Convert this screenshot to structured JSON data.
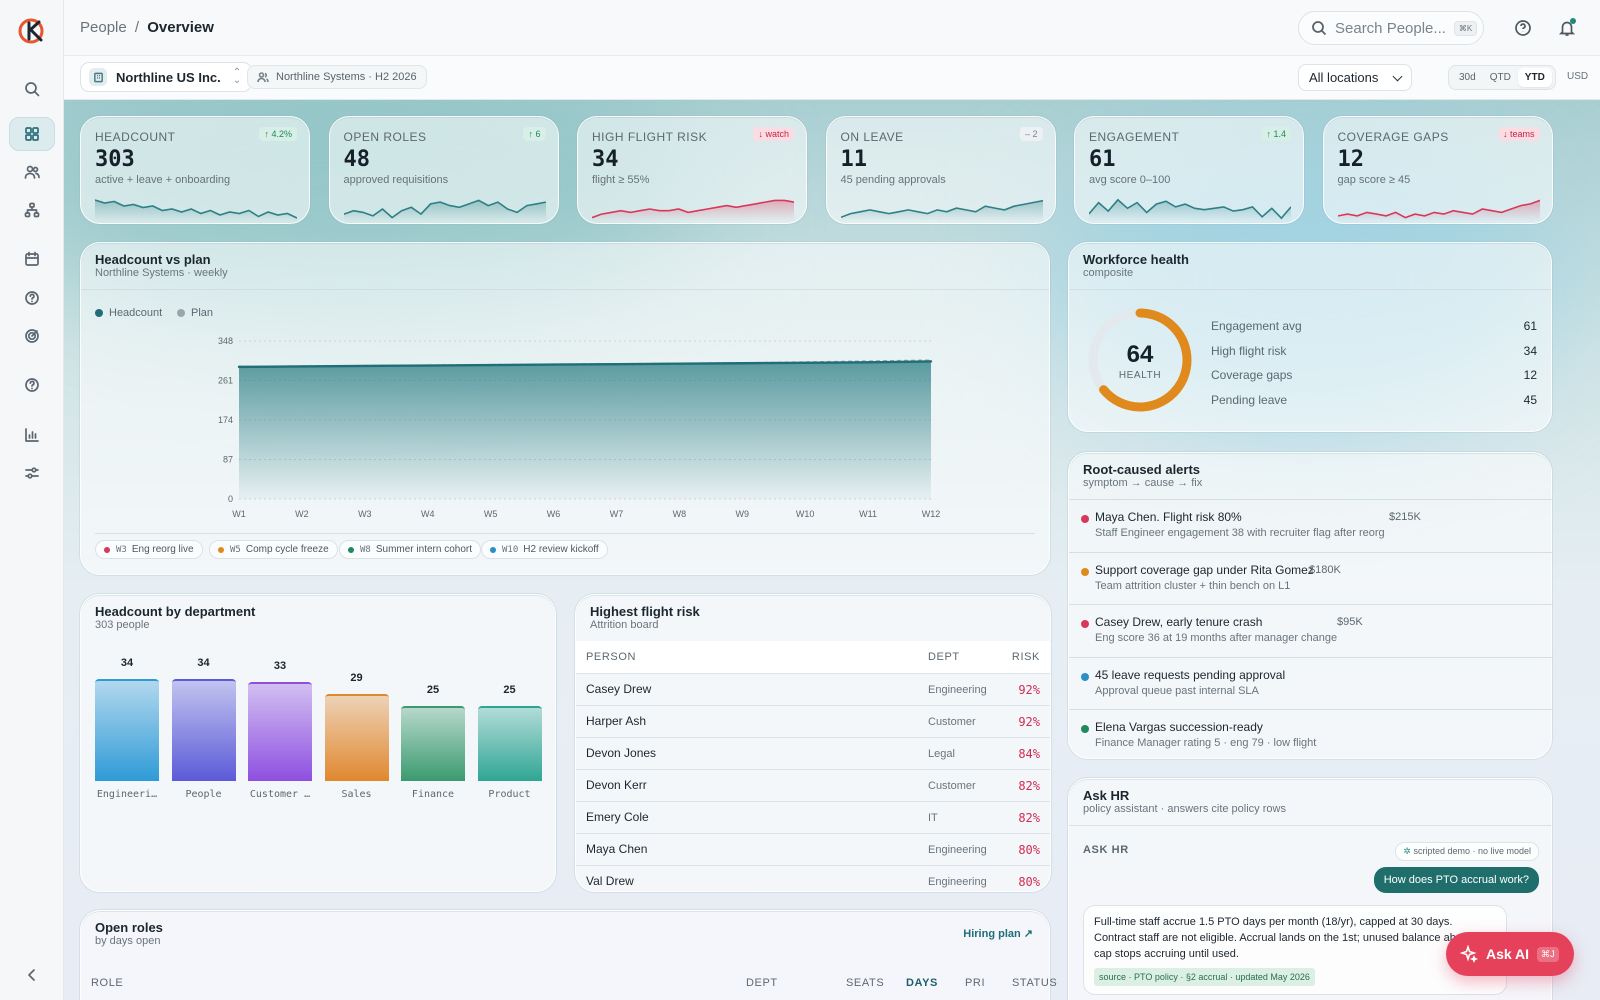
{
  "header": {
    "breadcrumb_parent": "People",
    "breadcrumb_sep": "/",
    "breadcrumb_current": "Overview",
    "search_placeholder": "Search People...",
    "search_shortcut": "⌘K"
  },
  "subbar": {
    "org": "Northline US Inc.",
    "scope": "Northline Systems · H2 2026",
    "location": "All locations",
    "ranges": [
      "30d",
      "QTD",
      "YTD"
    ],
    "selected_range": "YTD",
    "currency": "USD"
  },
  "kpis": [
    {
      "label": "HEADCOUNT",
      "value": "303",
      "sub": "active + leave + onboarding",
      "badge": "↑ 4.2%",
      "badge_kind": "up",
      "spark": [
        30,
        28,
        29,
        26,
        27,
        25,
        26,
        23,
        24,
        22,
        24,
        21,
        23,
        20,
        22,
        21,
        23,
        19,
        22,
        20,
        21,
        18
      ],
      "spark_color": "#2f7f86"
    },
    {
      "label": "OPEN ROLES",
      "value": "48",
      "sub": "approved requisitions",
      "badge": "↑ 6",
      "badge_kind": "up",
      "spark": [
        20,
        22,
        21,
        19,
        23,
        18,
        22,
        24,
        20,
        26,
        27,
        25,
        24,
        26,
        28,
        25,
        27,
        23,
        21,
        25,
        26,
        27
      ],
      "spark_color": "#2f7f86"
    },
    {
      "label": "HIGH FLIGHT RISK",
      "value": "34",
      "sub": "flight ≥ 55%",
      "badge": "↓ watch",
      "badge_kind": "down",
      "spark": [
        18,
        20,
        21,
        22,
        21,
        22,
        23,
        22,
        22,
        23,
        21,
        22,
        23,
        24,
        25,
        24,
        25,
        26,
        27,
        28,
        28,
        27
      ],
      "spark_color": "#d8385a"
    },
    {
      "label": "ON LEAVE",
      "value": "11",
      "sub": "45 pending approvals",
      "badge": "– 2",
      "badge_kind": "neutral",
      "spark": [
        18,
        20,
        21,
        22,
        21,
        20,
        21,
        22,
        21,
        20,
        22,
        21,
        23,
        22,
        21,
        24,
        23,
        22,
        24,
        25,
        26,
        27
      ],
      "spark_color": "#2f7f86"
    },
    {
      "label": "ENGAGEMENT",
      "value": "61",
      "sub": "avg score 0–100",
      "badge": "↑ 1.4",
      "badge_kind": "up",
      "spark": [
        22,
        30,
        24,
        32,
        26,
        30,
        23,
        29,
        31,
        27,
        29,
        26,
        25,
        26,
        27,
        24,
        25,
        27,
        20,
        26,
        19,
        27
      ],
      "spark_color": "#2f7f86"
    },
    {
      "label": "COVERAGE GAPS",
      "value": "12",
      "sub": "gap score ≥ 45",
      "badge": "↓ teams",
      "badge_kind": "down",
      "spark": [
        20,
        21,
        20,
        22,
        21,
        20,
        22,
        19,
        21,
        20,
        22,
        21,
        23,
        22,
        21,
        24,
        23,
        22,
        24,
        26,
        27,
        29
      ],
      "spark_color": "#d8385a"
    }
  ],
  "headcount_chart": {
    "title": "Headcount vs plan",
    "subtitle": "Northline Systems · weekly",
    "legend": [
      "Headcount",
      "Plan"
    ],
    "event_pills": [
      {
        "week": "W3",
        "label": "Eng reorg live",
        "color": "#d8385a"
      },
      {
        "week": "W5",
        "label": "Comp cycle freeze",
        "color": "#e08a1e"
      },
      {
        "week": "W8",
        "label": "Summer intern cohort",
        "color": "#1f8a5e"
      },
      {
        "week": "W10",
        "label": "H2 review kickoff",
        "color": "#2a8fc7"
      }
    ]
  },
  "chart_data": [
    {
      "type": "area",
      "title": "Headcount vs plan",
      "x": [
        "W1",
        "W2",
        "W3",
        "W4",
        "W5",
        "W6",
        "W7",
        "W8",
        "W9",
        "W10",
        "W11",
        "W12"
      ],
      "series": [
        {
          "name": "Headcount",
          "values": [
            291,
            292,
            293,
            294,
            295,
            296,
            297,
            298,
            299,
            300,
            301,
            303
          ]
        },
        {
          "name": "Plan",
          "values": [
            292,
            293,
            294,
            295,
            296,
            297,
            298,
            299,
            300,
            302,
            304,
            306
          ]
        }
      ],
      "y_ticks": [
        0,
        87,
        174,
        261,
        348
      ],
      "ylim": [
        0,
        348
      ],
      "legend_position": "top-left"
    },
    {
      "type": "bar",
      "title": "Headcount by department",
      "categories": [
        "Engineeri…",
        "People",
        "Customer …",
        "Sales",
        "Finance",
        "Product"
      ],
      "values": [
        34,
        34,
        33,
        29,
        25,
        25
      ],
      "colors": [
        "#2e9ad6",
        "#5b5ad8",
        "#8e4fe0",
        "#e0872e",
        "#3a9a6e",
        "#2fa594"
      ]
    }
  ],
  "health": {
    "title": "Workforce health",
    "subtitle": "composite",
    "score": "64",
    "score_label": "HEALTH",
    "score_fraction": 0.64,
    "rows": [
      {
        "label": "Engagement avg",
        "value": "61"
      },
      {
        "label": "High flight risk",
        "value": "34"
      },
      {
        "label": "Coverage gaps",
        "value": "12"
      },
      {
        "label": "Pending leave",
        "value": "45"
      }
    ]
  },
  "alerts": {
    "title": "Root-caused alerts",
    "subtitle": "symptom → cause → fix",
    "items": [
      {
        "title": "Maya Chen. Flight risk 80%",
        "detail": "Staff Engineer engagement 38 with recruiter flag after reorg",
        "amount": "$215K",
        "color": "#d8385a"
      },
      {
        "title": "Support coverage gap under Rita Gomez",
        "detail": "Team attrition cluster + thin bench on L1",
        "amount": "$180K",
        "color": "#e08a1e"
      },
      {
        "title": "Casey Drew, early tenure crash",
        "detail": "Eng score 36 at 19 months after manager change",
        "amount": "$95K",
        "color": "#d8385a"
      },
      {
        "title": "45 leave requests pending approval",
        "detail": "Approval queue past internal SLA",
        "amount": "",
        "color": "#2a8fc7"
      },
      {
        "title": "Elena Vargas succession-ready",
        "detail": "Finance Manager rating 5 · eng 79 · low flight",
        "amount": "",
        "color": "#1f8a5e"
      }
    ]
  },
  "departments": {
    "title": "Headcount by department",
    "subtitle": "303 people"
  },
  "flight_risk": {
    "title": "Highest flight risk",
    "subtitle": "Attrition board",
    "columns": [
      "PERSON",
      "DEPT",
      "RISK"
    ],
    "rows": [
      {
        "person": "Casey Drew",
        "dept": "Engineering",
        "risk": "92%"
      },
      {
        "person": "Harper Ash",
        "dept": "Customer",
        "risk": "92%"
      },
      {
        "person": "Devon Jones",
        "dept": "Legal",
        "risk": "84%"
      },
      {
        "person": "Devon Kerr",
        "dept": "Customer",
        "risk": "82%"
      },
      {
        "person": "Emery Cole",
        "dept": "IT",
        "risk": "82%"
      },
      {
        "person": "Maya Chen",
        "dept": "Engineering",
        "risk": "80%"
      },
      {
        "person": "Val Drew",
        "dept": "Engineering",
        "risk": "80%"
      }
    ]
  },
  "open_roles": {
    "title": "Open roles",
    "subtitle": "by days open",
    "link": "Hiring plan",
    "columns": [
      "ROLE",
      "DEPT",
      "SEATS",
      "DAYS",
      "PRI",
      "STATUS"
    ]
  },
  "ask_hr": {
    "title": "Ask HR",
    "subtitle": "policy assistant · answers cite policy rows",
    "section_label": "ASK HR",
    "demo_note": "scripted demo · no live model",
    "question": "How does PTO accrual work?",
    "answer": "Full-time staff accrue 1.5 PTO days per month (18/yr), capped at 30 days. Contract staff are not eligible. Accrual lands on the 1st; unused balance above the cap stops accruing until used.",
    "source": "source · PTO policy · §2 accrual · updated May 2026"
  },
  "ask_ai": {
    "label": "Ask AI",
    "shortcut": "⌘J"
  }
}
